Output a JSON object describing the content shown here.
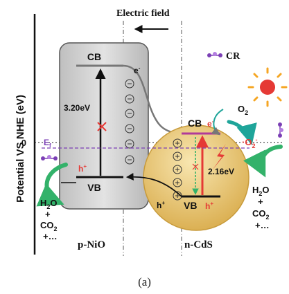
{
  "diagram": {
    "y_axis_label": "Potential VS NHE (eV)",
    "zero_label": "0",
    "field_label": "Electric field",
    "cr_label": "CR",
    "nio": {
      "name": "p-NiO",
      "cb": "CB",
      "vb": "VB",
      "gap": "3.20eV",
      "electron": "e",
      "electron_sup": "-",
      "hole": "h",
      "hole_sup": "+",
      "hole_bottom": "h",
      "hole_bottom_sup": "+"
    },
    "cds": {
      "name": "n-CdS",
      "cb": "CB",
      "vb": "VB",
      "gap": "2.16eV",
      "electron": "e",
      "electron_sup": "-",
      "hole": "h",
      "hole_sup": "+"
    },
    "fermi_label": "E",
    "fermi_sub": "f",
    "o2_label": "O",
    "o2_sub": "2",
    "superoxide_prefix": "·O",
    "superoxide_sub": "2",
    "superoxide_sup": "-",
    "left_products": {
      "l1a": "H",
      "l1b": "2",
      "l1c": "O",
      "l2": "+",
      "l3a": "CO",
      "l3b": "2",
      "l4": "+…"
    },
    "right_products": {
      "l1a": "H",
      "l1b": "2",
      "l1c": "O",
      "l2": "+",
      "l3a": "CO",
      "l3b": "2",
      "l4": "+…"
    },
    "colors": {
      "nio_fill": "#d2d2d2",
      "cds_fill": "#e9c87a",
      "fermi": "#7b3fb5",
      "red": "#e53935",
      "green": "#33b26a",
      "teal": "#1fa59a",
      "sun": "#f5a623",
      "cb_cds": "#b03a9a"
    }
  },
  "caption": "(a)"
}
